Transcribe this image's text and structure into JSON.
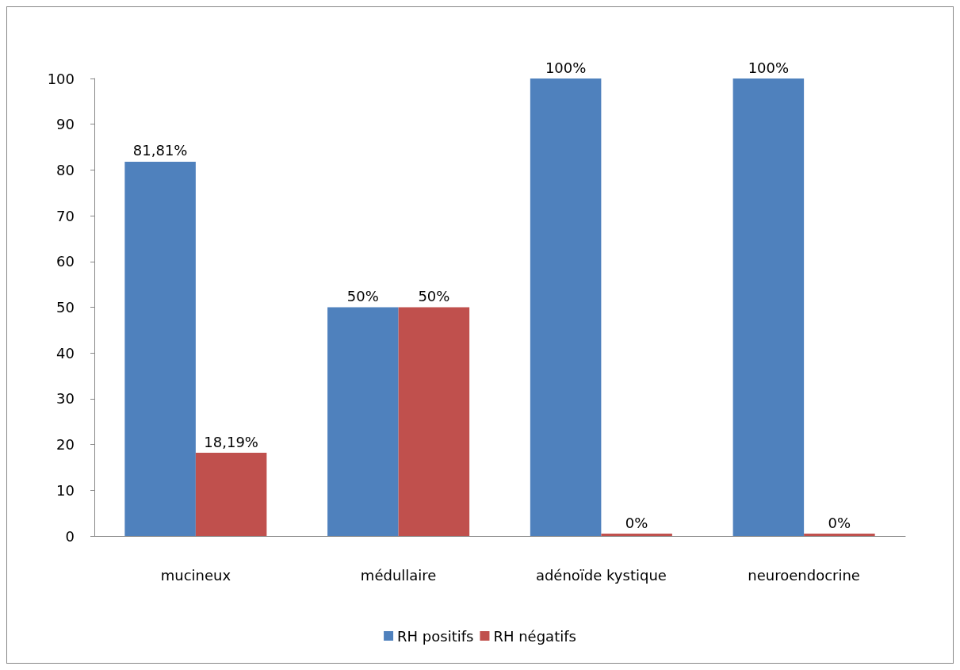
{
  "chart_data": {
    "type": "bar",
    "categories": [
      "mucineux",
      "médullaire",
      "adénoïde kystique",
      "neuroendocrine"
    ],
    "series": [
      {
        "name": "RH positifs",
        "color": "#4f81bd",
        "values": [
          81.81,
          50,
          100,
          100
        ],
        "value_labels": [
          "81,81%",
          "50%",
          "100%",
          "100%"
        ]
      },
      {
        "name": "RH négatifs",
        "color": "#c0504d",
        "values": [
          18.19,
          50,
          0,
          0
        ],
        "value_labels": [
          "18,19%",
          "50%",
          "0%",
          "0%"
        ]
      }
    ],
    "ylim": [
      0,
      100
    ],
    "yticks": [
      0,
      10,
      20,
      30,
      40,
      50,
      60,
      70,
      80,
      90,
      100
    ],
    "grid": false,
    "legend": "bottom"
  }
}
